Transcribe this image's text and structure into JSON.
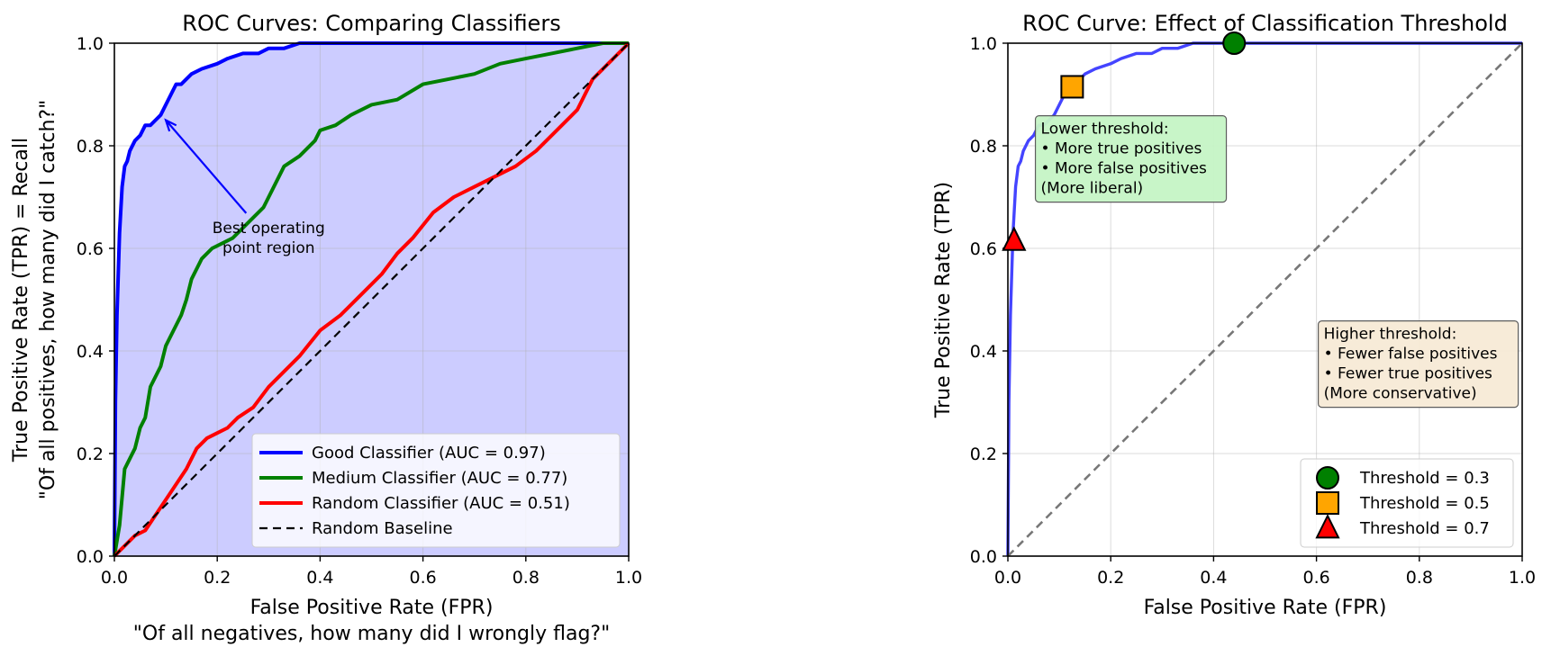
{
  "chart_data": [
    {
      "type": "line",
      "title": "ROC Curves: Comparing Classifiers",
      "xlabel": "False Positive Rate (FPR)",
      "xlabel_sub": "\"Of all negatives, how many did I wrongly flag?\"",
      "ylabel": "True Positive Rate (TPR) = Recall",
      "ylabel_sub": "\"Of all positives, how many did I catch?\"",
      "xlim": [
        0,
        1
      ],
      "ylim": [
        0,
        1
      ],
      "xticks": [
        "0.0",
        "0.2",
        "0.4",
        "0.6",
        "0.8",
        "1.0"
      ],
      "yticks": [
        "0.0",
        "0.2",
        "0.4",
        "0.6",
        "0.8",
        "1.0"
      ],
      "grid": true,
      "legend_position": "bottom-right",
      "fill_under_series": "Good Classifier (AUC = 0.97)",
      "fill_color": "#ccccff",
      "series": [
        {
          "name": "Good Classifier (AUC = 0.97)",
          "color": "#0000ff",
          "x": [
            0,
            0.002,
            0.005,
            0.01,
            0.015,
            0.02,
            0.025,
            0.03,
            0.04,
            0.05,
            0.06,
            0.07,
            0.08,
            0.09,
            0.1,
            0.11,
            0.12,
            0.13,
            0.15,
            0.17,
            0.2,
            0.22,
            0.25,
            0.28,
            0.3,
            0.33,
            0.36,
            0.4,
            0.5,
            0.7,
            1.0
          ],
          "y": [
            0,
            0.3,
            0.47,
            0.63,
            0.72,
            0.76,
            0.77,
            0.79,
            0.81,
            0.82,
            0.84,
            0.84,
            0.85,
            0.86,
            0.88,
            0.9,
            0.92,
            0.92,
            0.94,
            0.95,
            0.96,
            0.97,
            0.98,
            0.98,
            0.99,
            0.99,
            1.0,
            1.0,
            1.0,
            1.0,
            1.0
          ]
        },
        {
          "name": "Medium Classifier (AUC = 0.77)",
          "color": "#008000",
          "x": [
            0,
            0.01,
            0.02,
            0.03,
            0.04,
            0.05,
            0.06,
            0.07,
            0.08,
            0.09,
            0.1,
            0.11,
            0.12,
            0.13,
            0.14,
            0.15,
            0.17,
            0.19,
            0.21,
            0.23,
            0.25,
            0.27,
            0.29,
            0.3,
            0.33,
            0.36,
            0.39,
            0.4,
            0.43,
            0.46,
            0.5,
            0.55,
            0.6,
            0.65,
            0.7,
            0.75,
            0.8,
            0.85,
            0.9,
            0.95,
            1.0
          ],
          "y": [
            0,
            0.06,
            0.17,
            0.19,
            0.21,
            0.25,
            0.27,
            0.33,
            0.35,
            0.37,
            0.41,
            0.43,
            0.45,
            0.47,
            0.5,
            0.54,
            0.58,
            0.6,
            0.61,
            0.62,
            0.64,
            0.66,
            0.68,
            0.7,
            0.76,
            0.78,
            0.81,
            0.83,
            0.84,
            0.86,
            0.88,
            0.89,
            0.92,
            0.93,
            0.94,
            0.96,
            0.97,
            0.98,
            0.99,
            1.0,
            1.0
          ]
        },
        {
          "name": "Random Classifier (AUC = 0.51)",
          "color": "#ff0000",
          "x": [
            0,
            0.02,
            0.04,
            0.06,
            0.08,
            0.1,
            0.12,
            0.14,
            0.16,
            0.18,
            0.2,
            0.22,
            0.24,
            0.27,
            0.3,
            0.33,
            0.36,
            0.4,
            0.44,
            0.48,
            0.52,
            0.55,
            0.58,
            0.62,
            0.66,
            0.7,
            0.74,
            0.78,
            0.82,
            0.86,
            0.9,
            0.93,
            0.96,
            1.0
          ],
          "y": [
            0,
            0.02,
            0.04,
            0.05,
            0.08,
            0.11,
            0.14,
            0.17,
            0.21,
            0.23,
            0.24,
            0.25,
            0.27,
            0.29,
            0.33,
            0.36,
            0.39,
            0.44,
            0.47,
            0.51,
            0.55,
            0.59,
            0.62,
            0.67,
            0.7,
            0.72,
            0.74,
            0.76,
            0.79,
            0.83,
            0.87,
            0.93,
            0.96,
            1.0
          ]
        },
        {
          "name": "Random Baseline",
          "color": "#000000",
          "dashed": true,
          "x": [
            0,
            1
          ],
          "y": [
            0,
            1
          ]
        }
      ],
      "annotations": [
        {
          "lines": [
            "Best operating",
            "point region"
          ],
          "text_at": [
            0.3,
            0.63
          ],
          "arrow_to": [
            0.1,
            0.85
          ],
          "color": "#0000ff"
        }
      ]
    },
    {
      "type": "line",
      "title": "ROC Curve: Effect of Classification Threshold",
      "xlabel": "False Positive Rate (FPR)",
      "ylabel": "True Positive Rate (TPR)",
      "xlim": [
        0,
        1
      ],
      "ylim": [
        0,
        1
      ],
      "xticks": [
        "0.0",
        "0.2",
        "0.4",
        "0.6",
        "0.8",
        "1.0"
      ],
      "yticks": [
        "0.0",
        "0.2",
        "0.4",
        "0.6",
        "0.8",
        "1.0"
      ],
      "grid": true,
      "legend_position": "bottom-right",
      "series": [
        {
          "color": "#4444ff",
          "x": [
            0,
            0.002,
            0.005,
            0.01,
            0.015,
            0.02,
            0.025,
            0.03,
            0.04,
            0.05,
            0.06,
            0.07,
            0.08,
            0.09,
            0.1,
            0.11,
            0.12,
            0.13,
            0.15,
            0.17,
            0.2,
            0.22,
            0.25,
            0.28,
            0.3,
            0.33,
            0.36,
            0.4,
            0.5,
            0.7,
            1.0
          ],
          "y": [
            0,
            0.3,
            0.47,
            0.63,
            0.72,
            0.76,
            0.77,
            0.79,
            0.81,
            0.82,
            0.84,
            0.84,
            0.85,
            0.86,
            0.88,
            0.9,
            0.92,
            0.92,
            0.94,
            0.95,
            0.96,
            0.97,
            0.98,
            0.98,
            0.99,
            0.99,
            1.0,
            1.0,
            1.0,
            1.0,
            1.0
          ]
        },
        {
          "color": "#777777",
          "dashed": true,
          "x": [
            0,
            1
          ],
          "y": [
            0,
            1
          ]
        }
      ],
      "markers": [
        {
          "label": "Threshold = 0.3",
          "x": 0.44,
          "y": 1.0,
          "shape": "circle",
          "color": "#008000"
        },
        {
          "label": "Threshold = 0.5",
          "x": 0.125,
          "y": 0.915,
          "shape": "square",
          "color": "#ffa500"
        },
        {
          "label": "Threshold = 0.7",
          "x": 0.012,
          "y": 0.615,
          "shape": "triangle",
          "color": "#ff0000"
        }
      ],
      "notes": [
        {
          "lines": [
            "Lower threshold:",
            "• More true positives",
            "• More false positives",
            "(More liberal)"
          ],
          "anchor": [
            0.05,
            0.82
          ],
          "background": "#c6f5c6"
        },
        {
          "lines": [
            "Higher threshold:",
            "• Fewer false positives",
            "• Fewer true positives",
            "(More conservative)"
          ],
          "anchor": [
            0.6,
            0.42
          ],
          "background": "#f7ead6"
        }
      ]
    }
  ]
}
